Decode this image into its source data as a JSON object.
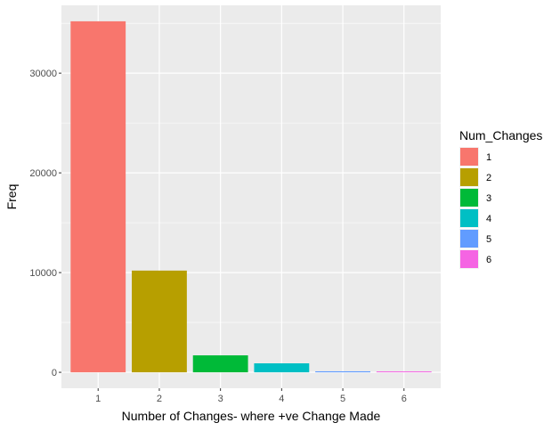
{
  "chart_data": {
    "type": "bar",
    "title": "",
    "xlabel": "Number of Changes- where +ve Change Made",
    "ylabel": "Freq",
    "categories": [
      "1",
      "2",
      "3",
      "4",
      "5",
      "6"
    ],
    "values": [
      35200,
      10200,
      1700,
      900,
      100,
      20
    ],
    "ylim": [
      -1600,
      36800
    ],
    "yticks": [
      0,
      10000,
      20000,
      30000
    ],
    "ytick_labels": [
      "0",
      "10000",
      "20000",
      "30000"
    ],
    "grid": true,
    "legend": {
      "title": "Num_Changes",
      "placement": "right",
      "entries": [
        "1",
        "2",
        "3",
        "4",
        "5",
        "6"
      ]
    },
    "colors": [
      "#F8766D",
      "#B79F00",
      "#00BA38",
      "#00BFC4",
      "#619CFF",
      "#F564E3"
    ],
    "panel_background": "#EBEBEB",
    "grid_color": "#FFFFFF"
  }
}
